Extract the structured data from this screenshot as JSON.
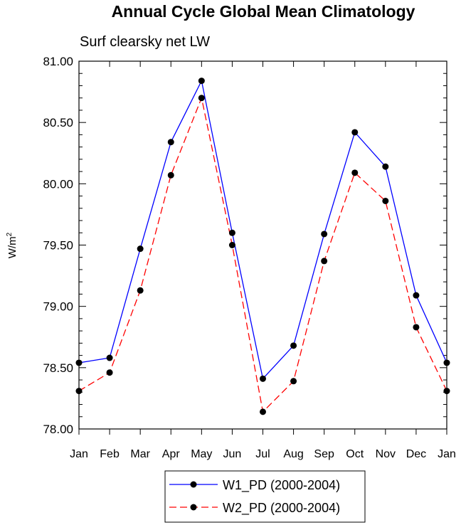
{
  "chart_data": {
    "type": "line",
    "title": "Annual Cycle Global Mean Climatology",
    "subtitle": "Surf clearsky net LW",
    "ylabel": "W/m",
    "ylabel_superscript": "2",
    "ylim": [
      78.0,
      81.0
    ],
    "yticks": [
      "78.00",
      "78.50",
      "79.00",
      "79.50",
      "80.00",
      "80.50",
      "81.00"
    ],
    "ytick_values": [
      78.0,
      78.5,
      79.0,
      79.5,
      80.0,
      80.5,
      81.0
    ],
    "categories": [
      "Jan",
      "Feb",
      "Mar",
      "Apr",
      "May",
      "Jun",
      "Jul",
      "Aug",
      "Sep",
      "Oct",
      "Nov",
      "Dec",
      "Jan"
    ],
    "series": [
      {
        "name": "W1_PD (2000-2004)",
        "color": "#0000ff",
        "dash": "solid",
        "values": [
          78.54,
          78.58,
          79.47,
          80.34,
          80.84,
          79.6,
          78.41,
          78.68,
          79.59,
          80.42,
          80.14,
          79.09,
          78.54
        ]
      },
      {
        "name": "W2_PD (2000-2004)",
        "color": "#ff0000",
        "dash": "dashed",
        "values": [
          78.31,
          78.46,
          79.13,
          80.07,
          80.7,
          79.5,
          78.14,
          78.39,
          79.37,
          80.09,
          79.86,
          78.83,
          78.31
        ]
      }
    ],
    "marker_color": "#000000"
  }
}
